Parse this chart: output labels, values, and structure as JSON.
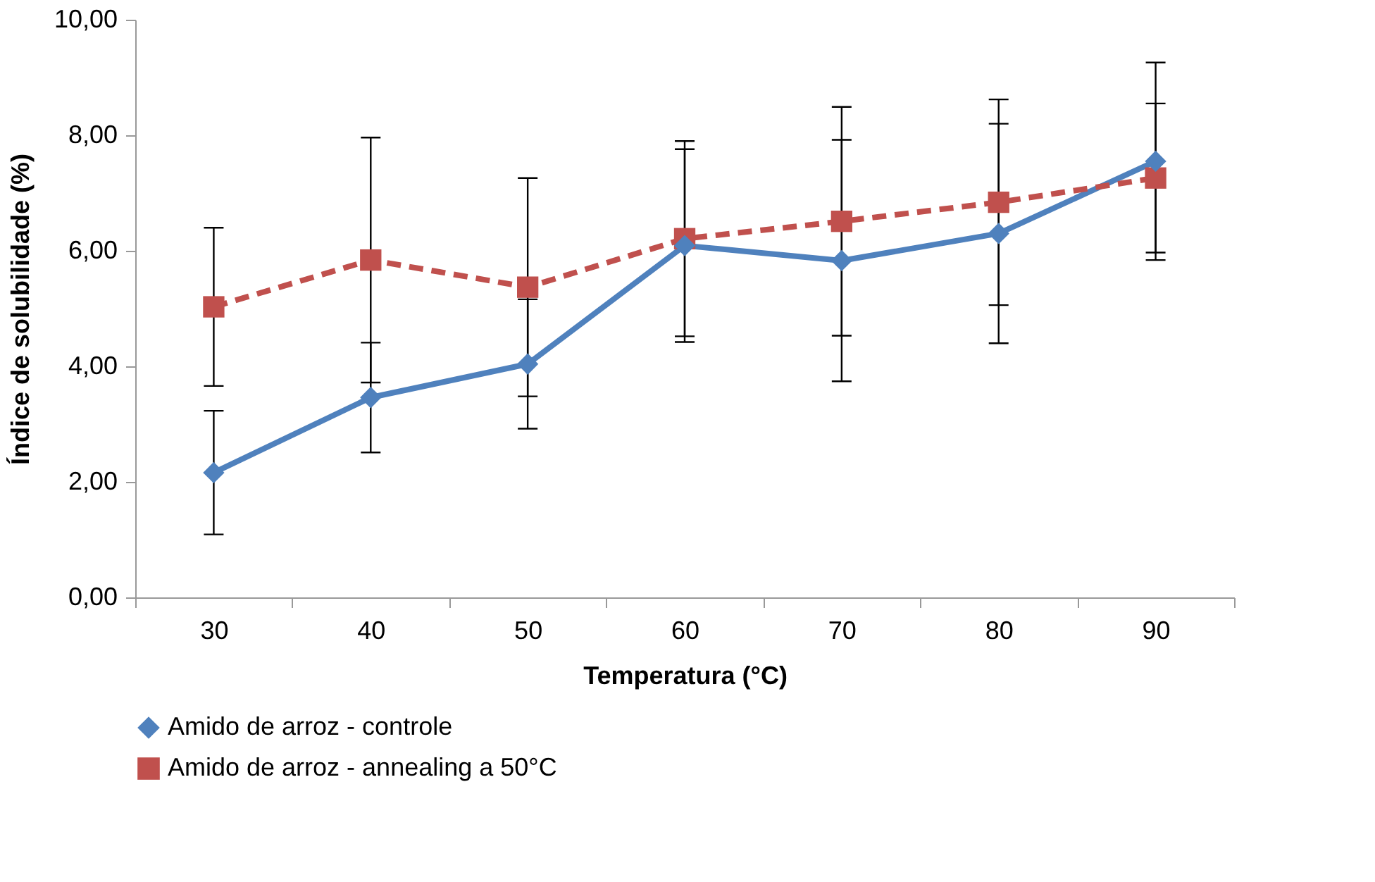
{
  "chart_data": {
    "type": "line",
    "xlabel": "Temperatura (°C)",
    "ylabel": "Índice de solubilidade (%)",
    "categories": [
      "30",
      "40",
      "50",
      "60",
      "70",
      "80",
      "90"
    ],
    "series": [
      {
        "name": "Amido de arroz - controle",
        "color": "#4f81bd",
        "marker": "diamond",
        "line_style": "solid",
        "values": [
          2.16,
          3.46,
          4.04,
          6.09,
          5.83,
          6.3,
          7.55
        ],
        "errors": [
          1.07,
          0.95,
          1.12,
          1.67,
          2.09,
          1.9,
          1.71
        ]
      },
      {
        "name": "Amido de arroz - annealing a 50°C",
        "color": "#c0504d",
        "marker": "square",
        "line_style": "dashed",
        "values": [
          5.03,
          5.84,
          5.37,
          6.21,
          6.51,
          6.84,
          7.26
        ],
        "errors": [
          1.37,
          2.12,
          1.89,
          1.69,
          1.98,
          1.78,
          1.29
        ]
      }
    ],
    "ylim": [
      0,
      10
    ],
    "yticks": [
      {
        "value": 0,
        "label": "0,00"
      },
      {
        "value": 2,
        "label": "2,00"
      },
      {
        "value": 4,
        "label": "4,00"
      },
      {
        "value": 6,
        "label": "6,00"
      },
      {
        "value": 8,
        "label": "8,00"
      },
      {
        "value": 10,
        "label": "10,00"
      }
    ],
    "grid": false,
    "legend": "bottom"
  }
}
